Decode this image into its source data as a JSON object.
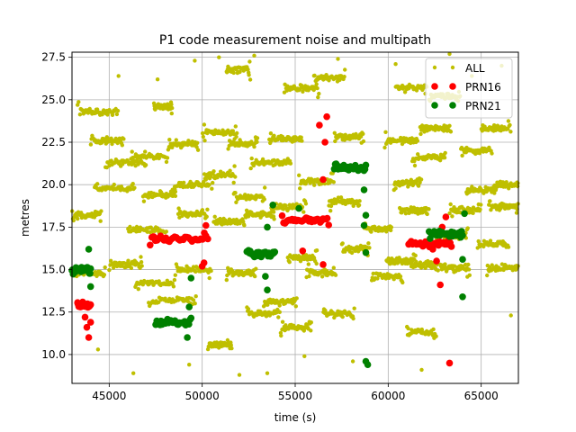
{
  "chart_data": {
    "type": "scatter",
    "title": "P1 code measurement noise and multipath",
    "xlabel": "time (s)",
    "ylabel": "metres",
    "xlim": [
      43000,
      67000
    ],
    "ylim": [
      8.3,
      27.8
    ],
    "grid": true,
    "legend_position": "top-right",
    "x_ticks": [
      "45000",
      "50000",
      "55000",
      "60000",
      "65000"
    ],
    "y_ticks": [
      "10.0",
      "12.5",
      "15.0",
      "17.5",
      "20.0",
      "22.5",
      "25.0",
      "27.5"
    ],
    "series": [
      {
        "name": "ALL",
        "color": "#bfbf00",
        "marker_size": "small",
        "clusters": [
          [
            43000,
            44600,
            18.2
          ],
          [
            43300,
            45500,
            24.3
          ],
          [
            44000,
            45800,
            22.6
          ],
          [
            44200,
            46400,
            19.8
          ],
          [
            43000,
            44800,
            14.8
          ],
          [
            44800,
            47000,
            21.3
          ],
          [
            45000,
            46800,
            15.3
          ],
          [
            46000,
            48100,
            17.3
          ],
          [
            46200,
            48200,
            21.7
          ],
          [
            46400,
            48600,
            14.2
          ],
          [
            46800,
            48600,
            19.4
          ],
          [
            47100,
            49700,
            13.2
          ],
          [
            47400,
            48400,
            24.6
          ],
          [
            48200,
            49800,
            22.4
          ],
          [
            48400,
            50600,
            20.0
          ],
          [
            48600,
            50500,
            15.0
          ],
          [
            48700,
            50300,
            18.3
          ],
          [
            50000,
            51900,
            23.1
          ],
          [
            50100,
            51800,
            20.6
          ],
          [
            50300,
            51600,
            10.6
          ],
          [
            50600,
            52300,
            17.8
          ],
          [
            51300,
            52900,
            14.8
          ],
          [
            51300,
            52600,
            26.8
          ],
          [
            51400,
            53000,
            22.4
          ],
          [
            51700,
            53400,
            19.3
          ],
          [
            52300,
            53900,
            18.2
          ],
          [
            52400,
            54200,
            12.4
          ],
          [
            52600,
            54800,
            21.3
          ],
          [
            53300,
            55100,
            13.1
          ],
          [
            53600,
            55400,
            22.7
          ],
          [
            53700,
            55600,
            18.7
          ],
          [
            54200,
            55900,
            11.6
          ],
          [
            54400,
            56300,
            25.7
          ],
          [
            54600,
            56200,
            15.7
          ],
          [
            55200,
            57100,
            20.2
          ],
          [
            55600,
            57200,
            14.8
          ],
          [
            56000,
            57700,
            26.3
          ],
          [
            56500,
            58200,
            12.4
          ],
          [
            56800,
            58500,
            19.0
          ],
          [
            57100,
            58700,
            22.8
          ],
          [
            57500,
            59000,
            16.2
          ],
          [
            58700,
            60200,
            17.4
          ],
          [
            59100,
            60800,
            14.6
          ],
          [
            59800,
            61600,
            22.6
          ],
          [
            59900,
            61500,
            15.5
          ],
          [
            60300,
            61800,
            20.1
          ],
          [
            60400,
            62100,
            25.7
          ],
          [
            60600,
            62200,
            18.5
          ],
          [
            61000,
            62600,
            11.3
          ],
          [
            61200,
            62700,
            15.3
          ],
          [
            61300,
            63100,
            21.6
          ],
          [
            61700,
            63400,
            23.3
          ],
          [
            62200,
            63900,
            25.2
          ],
          [
            62600,
            64300,
            17.0
          ],
          [
            62800,
            64400,
            15.1
          ],
          [
            63300,
            65000,
            18.5
          ],
          [
            63900,
            65600,
            22.0
          ],
          [
            64200,
            65800,
            19.7
          ],
          [
            64800,
            66500,
            16.5
          ],
          [
            65000,
            66600,
            23.3
          ],
          [
            65400,
            67000,
            18.7
          ],
          [
            65700,
            67000,
            20.0
          ],
          [
            65300,
            67000,
            15.1
          ]
        ],
        "sparse": [
          [
            45500,
            26.4
          ],
          [
            46300,
            8.9
          ],
          [
            47600,
            26.2
          ],
          [
            49600,
            27.3
          ],
          [
            49300,
            9.4
          ],
          [
            52000,
            8.8
          ],
          [
            52800,
            27.6
          ],
          [
            57300,
            27.4
          ],
          [
            58100,
            9.6
          ],
          [
            60400,
            27.1
          ],
          [
            61800,
            9.1
          ],
          [
            63300,
            27.7
          ],
          [
            66100,
            27.0
          ],
          [
            44400,
            10.3
          ],
          [
            66600,
            12.3
          ],
          [
            55500,
            9.9
          ],
          [
            50900,
            27.5
          ],
          [
            53500,
            8.9
          ],
          [
            64500,
            26.4
          ]
        ]
      },
      {
        "name": "PRN16",
        "color": "#ff0000",
        "segments": [
          [
            43300,
            44000,
            12.9
          ],
          [
            47200,
            50300,
            16.8
          ],
          [
            54300,
            56800,
            17.9
          ],
          [
            61100,
            63400,
            16.5
          ]
        ],
        "points": [
          [
            43700,
            12.2
          ],
          [
            43800,
            11.6
          ],
          [
            43900,
            11.0
          ],
          [
            44000,
            11.9
          ],
          [
            50100,
            15.4
          ],
          [
            50200,
            17.6
          ],
          [
            50000,
            15.2
          ],
          [
            56600,
            22.5
          ],
          [
            56700,
            24.0
          ],
          [
            56500,
            20.3
          ],
          [
            56500,
            15.3
          ],
          [
            55400,
            16.1
          ],
          [
            56300,
            23.5
          ],
          [
            62800,
            14.1
          ],
          [
            62900,
            17.5
          ],
          [
            63100,
            18.1
          ],
          [
            63300,
            9.5
          ],
          [
            62600,
            15.5
          ],
          [
            62400,
            16.2
          ]
        ]
      },
      {
        "name": "PRN21",
        "color": "#008000",
        "segments": [
          [
            43000,
            44000,
            15.0
          ],
          [
            47500,
            49400,
            11.9
          ],
          [
            52400,
            53900,
            15.9
          ],
          [
            57100,
            58800,
            21.0
          ],
          [
            62200,
            64000,
            17.1
          ]
        ],
        "points": [
          [
            43900,
            16.2
          ],
          [
            44000,
            14.0
          ],
          [
            49300,
            12.8
          ],
          [
            49200,
            11.0
          ],
          [
            49400,
            14.5
          ],
          [
            53400,
            14.6
          ],
          [
            53500,
            13.8
          ],
          [
            53500,
            17.5
          ],
          [
            53800,
            18.8
          ],
          [
            55200,
            18.6
          ],
          [
            58700,
            19.7
          ],
          [
            58800,
            18.2
          ],
          [
            58700,
            17.6
          ],
          [
            58800,
            16.0
          ],
          [
            58800,
            9.6
          ],
          [
            58900,
            9.4
          ],
          [
            63900,
            16.9
          ],
          [
            64000,
            15.6
          ],
          [
            64000,
            13.4
          ],
          [
            64100,
            18.3
          ]
        ]
      }
    ]
  }
}
